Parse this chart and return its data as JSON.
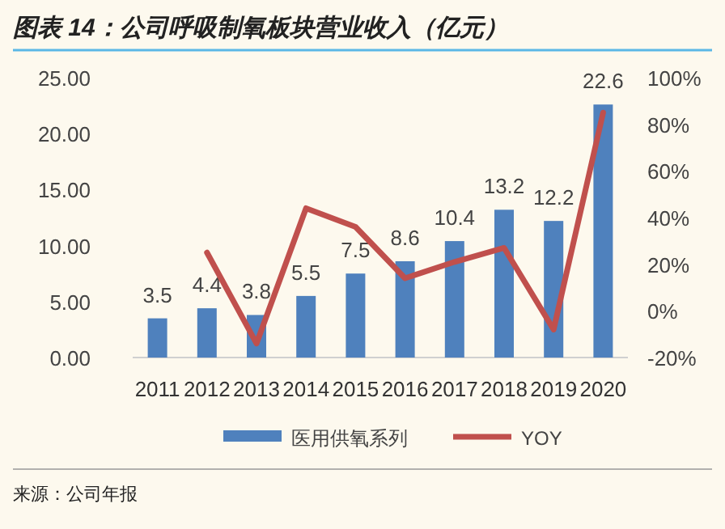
{
  "chart_data": {
    "type": "bar",
    "title": "图表 14：公司呼吸制氧板块营业收入（亿元）",
    "categories": [
      "2011",
      "2012",
      "2013",
      "2014",
      "2015",
      "2016",
      "2017",
      "2018",
      "2019",
      "2020"
    ],
    "series": [
      {
        "name": "医用供氧系列",
        "color": "#4f81bd",
        "values": [
          3.5,
          4.4,
          3.8,
          5.5,
          7.5,
          8.6,
          10.4,
          13.2,
          12.2,
          22.6
        ],
        "value_labels": [
          "3.5",
          "4.4",
          "3.8",
          "5.5",
          "7.5",
          "8.6",
          "10.4",
          "13.2",
          "12.2",
          "22.6"
        ]
      },
      {
        "name": "YOY",
        "type": "line",
        "axis": "y2",
        "color": "#c0504d",
        "values": [
          null,
          25,
          -14,
          44,
          36,
          14,
          21,
          27,
          -8,
          85
        ]
      }
    ],
    "ylim": [
      0,
      25
    ],
    "yticks": [
      {
        "value": 0,
        "label": "0.00"
      },
      {
        "value": 5,
        "label": "5.00"
      },
      {
        "value": 10,
        "label": "10.00"
      },
      {
        "value": 15,
        "label": "15.00"
      },
      {
        "value": 20,
        "label": "20.00"
      },
      {
        "value": 25,
        "label": "25.00"
      }
    ],
    "y2lim": [
      -20,
      100
    ],
    "y2ticks": [
      {
        "value": -20,
        "label": "-20%"
      },
      {
        "value": 0,
        "label": "0%"
      },
      {
        "value": 20,
        "label": "20%"
      },
      {
        "value": 40,
        "label": "40%"
      },
      {
        "value": 60,
        "label": "60%"
      },
      {
        "value": 80,
        "label": "80%"
      },
      {
        "value": 100,
        "label": "100%"
      }
    ],
    "legend": "bottom",
    "grid": false,
    "annotations": [
      "来源：公司年报"
    ]
  }
}
